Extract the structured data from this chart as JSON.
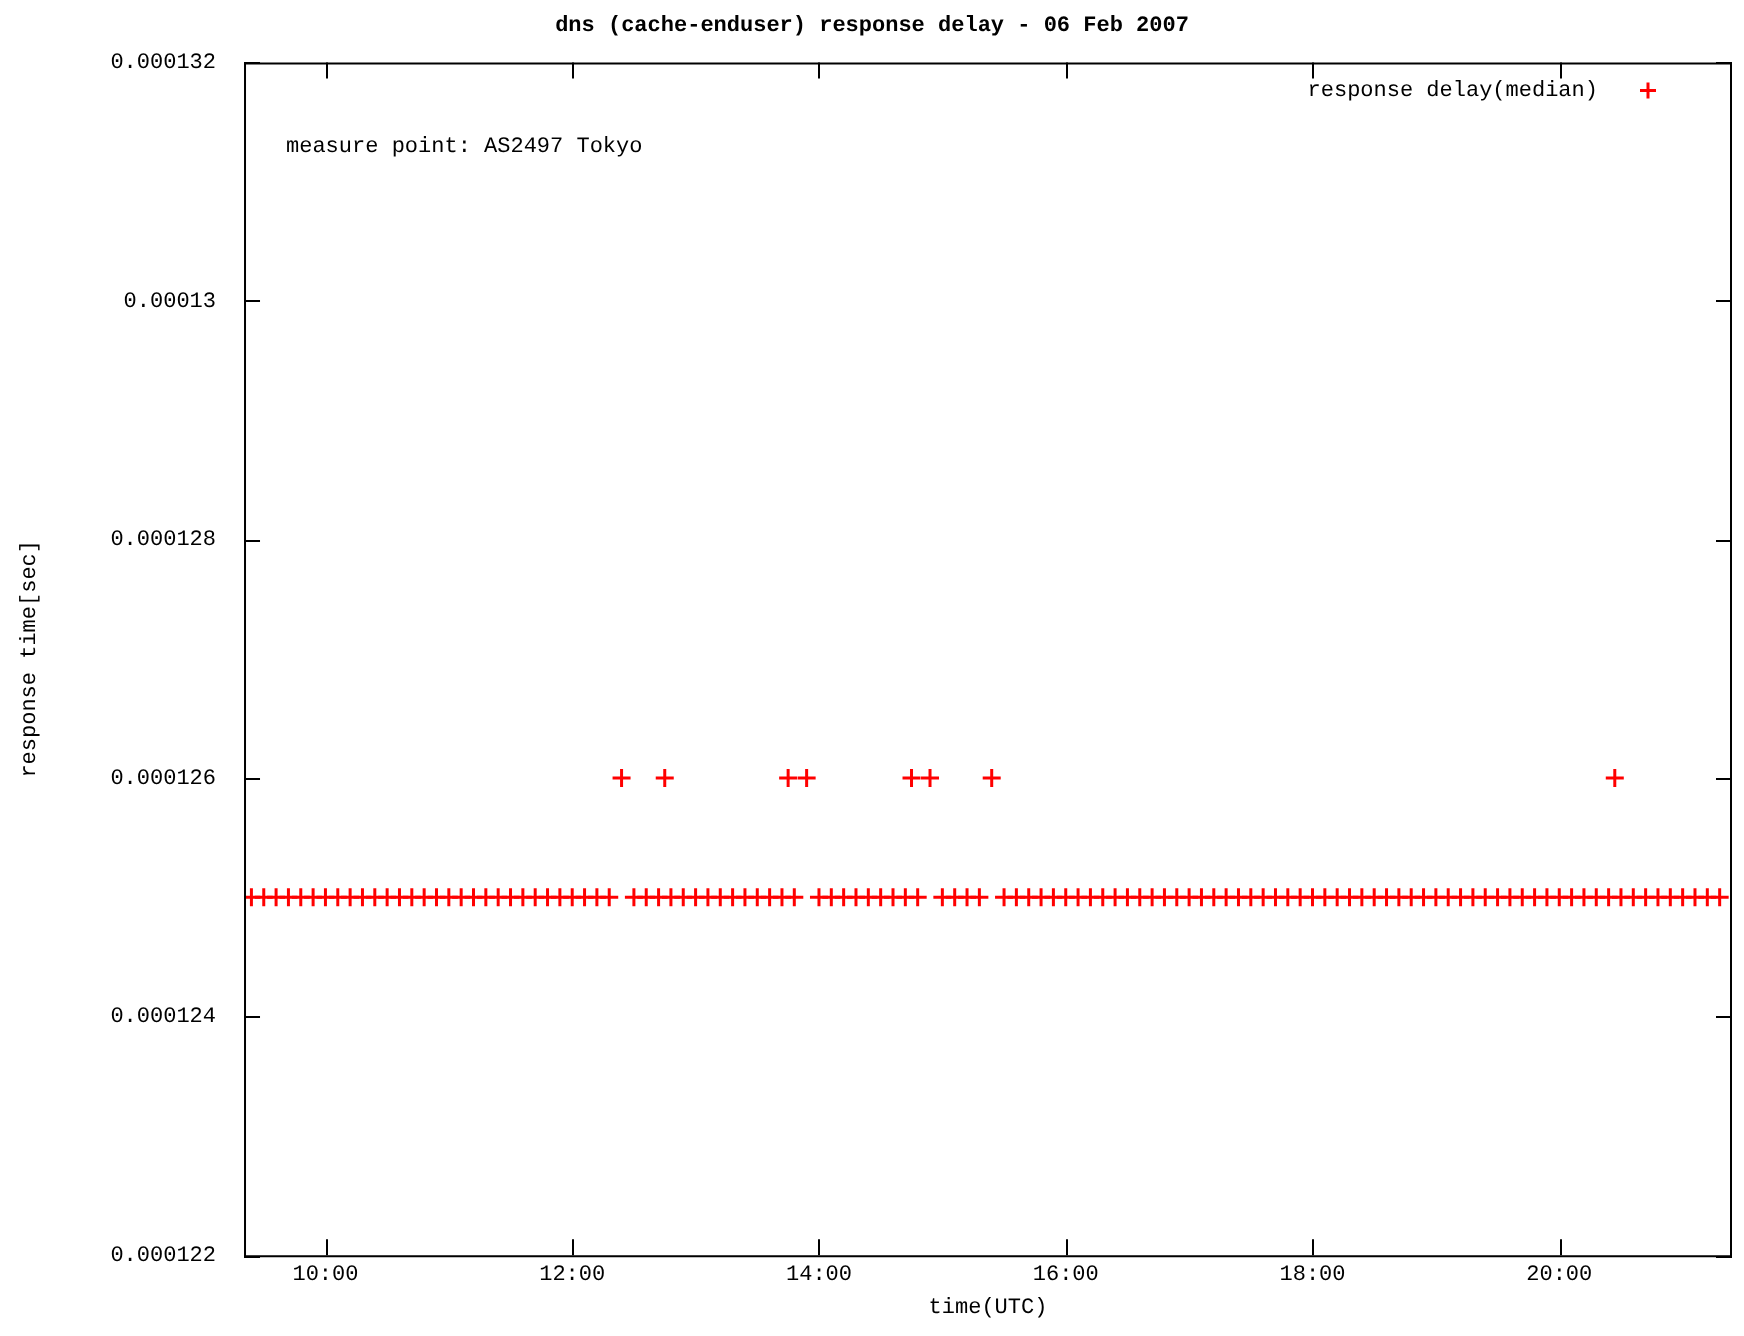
{
  "chart_data": {
    "type": "scatter",
    "title": "dns (cache-enduser) response delay - 06 Feb 2007",
    "xlabel": "time(UTC)",
    "ylabel": "response time[sec]",
    "annotations": [
      "measure point: AS2497 Tokyo"
    ],
    "xlim": [
      9.34,
      21.4
    ],
    "xticks": [
      {
        "value": 10,
        "label": "10:00"
      },
      {
        "value": 12,
        "label": "12:00"
      },
      {
        "value": 14,
        "label": "14:00"
      },
      {
        "value": 16,
        "label": "16:00"
      },
      {
        "value": 18,
        "label": "18:00"
      },
      {
        "value": 20,
        "label": "20:00"
      }
    ],
    "ylim": [
      0.000122,
      0.000132
    ],
    "yticks": [
      0.000122,
      0.000124,
      0.000126,
      0.000128,
      0.00013,
      0.000132
    ],
    "grid": false,
    "legend": "top right",
    "marker": "cross",
    "series": [
      {
        "name": "response delay(median)",
        "color": "#ff0000",
        "x": [
          9.4,
          9.5,
          9.6,
          9.7,
          9.8,
          9.9,
          10.0,
          10.1,
          10.2,
          10.3,
          10.4,
          10.5,
          10.6,
          10.7,
          10.8,
          10.9,
          11.0,
          11.1,
          11.2,
          11.3,
          11.4,
          11.5,
          11.6,
          11.7,
          11.8,
          11.9,
          12.0,
          12.1,
          12.2,
          12.3,
          12.4,
          12.5,
          12.6,
          12.7,
          12.75,
          12.8,
          12.9,
          13.0,
          13.1,
          13.2,
          13.3,
          13.4,
          13.5,
          13.6,
          13.7,
          13.75,
          13.8,
          13.9,
          14.0,
          14.1,
          14.2,
          14.3,
          14.4,
          14.5,
          14.6,
          14.7,
          14.75,
          14.8,
          14.9,
          15.0,
          15.1,
          15.2,
          15.3,
          15.4,
          15.5,
          15.6,
          15.7,
          15.8,
          15.9,
          16.0,
          16.1,
          16.2,
          16.3,
          16.4,
          16.5,
          16.6,
          16.7,
          16.8,
          16.9,
          17.0,
          17.1,
          17.2,
          17.3,
          17.4,
          17.5,
          17.6,
          17.7,
          17.8,
          17.9,
          18.0,
          18.1,
          18.2,
          18.3,
          18.4,
          18.5,
          18.6,
          18.7,
          18.8,
          18.9,
          19.0,
          19.1,
          19.2,
          19.3,
          19.4,
          19.5,
          19.6,
          19.7,
          19.8,
          19.9,
          20.0,
          20.1,
          20.2,
          20.3,
          20.4,
          20.45,
          20.5,
          20.6,
          20.7,
          20.8,
          20.9,
          21.0,
          21.1,
          21.2,
          21.3
        ],
        "values": [
          0.000125,
          0.000125,
          0.000125,
          0.000125,
          0.000125,
          0.000125,
          0.000125,
          0.000125,
          0.000125,
          0.000125,
          0.000125,
          0.000125,
          0.000125,
          0.000125,
          0.000125,
          0.000125,
          0.000125,
          0.000125,
          0.000125,
          0.000125,
          0.000125,
          0.000125,
          0.000125,
          0.000125,
          0.000125,
          0.000125,
          0.000125,
          0.000125,
          0.000125,
          0.000125,
          0.000126,
          0.000125,
          0.000125,
          0.000125,
          0.000126,
          0.000125,
          0.000125,
          0.000125,
          0.000125,
          0.000125,
          0.000125,
          0.000125,
          0.000125,
          0.000125,
          0.000125,
          0.000126,
          0.000125,
          0.000126,
          0.000125,
          0.000125,
          0.000125,
          0.000125,
          0.000125,
          0.000125,
          0.000125,
          0.000125,
          0.000126,
          0.000125,
          0.000126,
          0.000125,
          0.000125,
          0.000125,
          0.000125,
          0.000126,
          0.000125,
          0.000125,
          0.000125,
          0.000125,
          0.000125,
          0.000125,
          0.000125,
          0.000125,
          0.000125,
          0.000125,
          0.000125,
          0.000125,
          0.000125,
          0.000125,
          0.000125,
          0.000125,
          0.000125,
          0.000125,
          0.000125,
          0.000125,
          0.000125,
          0.000125,
          0.000125,
          0.000125,
          0.000125,
          0.000125,
          0.000125,
          0.000125,
          0.000125,
          0.000125,
          0.000125,
          0.000125,
          0.000125,
          0.000125,
          0.000125,
          0.000125,
          0.000125,
          0.000125,
          0.000125,
          0.000125,
          0.000125,
          0.000125,
          0.000125,
          0.000125,
          0.000125,
          0.000125,
          0.000125,
          0.000125,
          0.000125,
          0.000125,
          0.000126,
          0.000125,
          0.000125,
          0.000125,
          0.000125,
          0.000125,
          0.000125,
          0.000125,
          0.000125,
          0.000125
        ]
      }
    ]
  }
}
